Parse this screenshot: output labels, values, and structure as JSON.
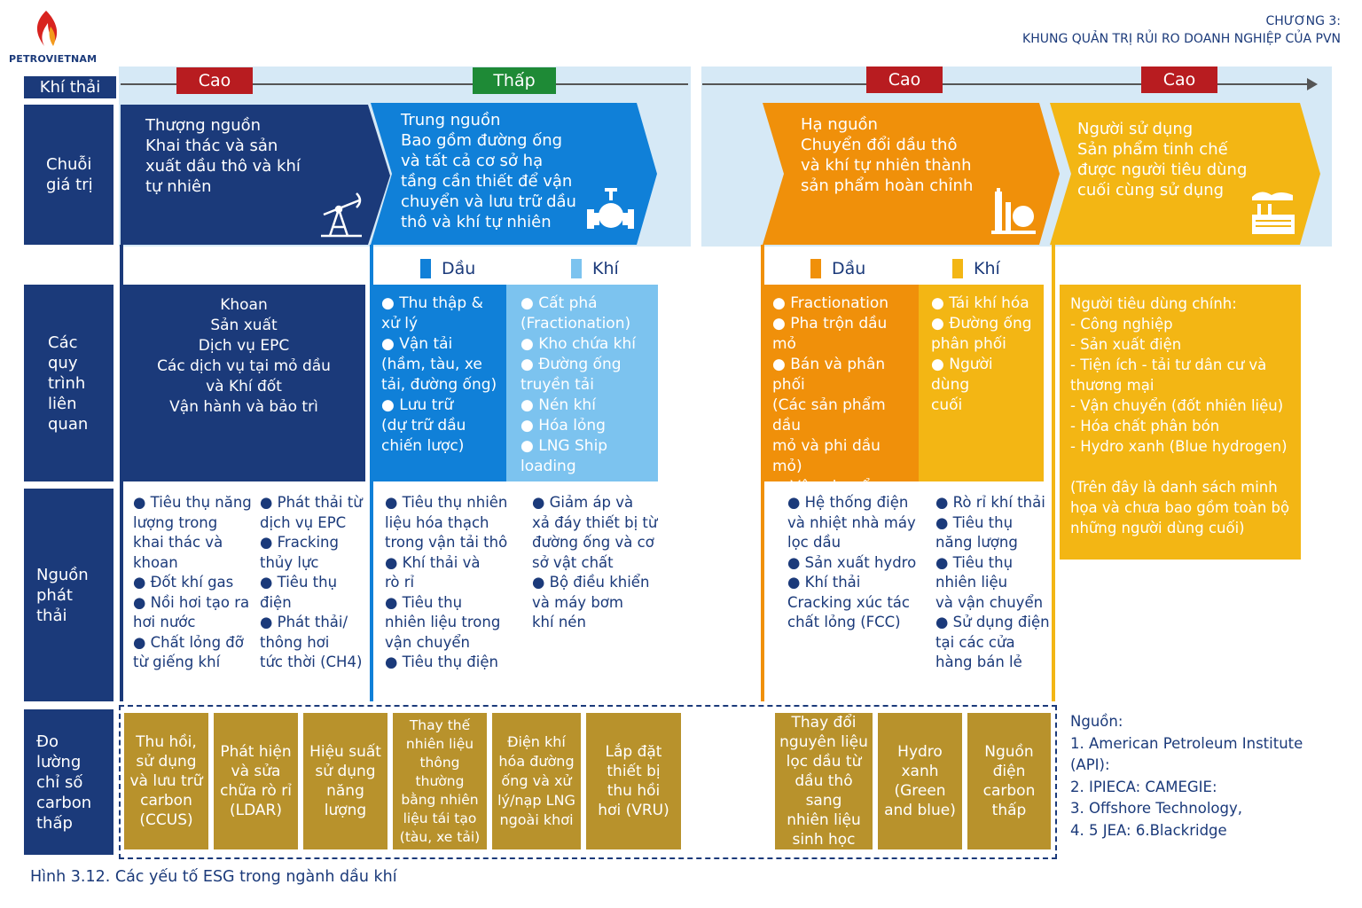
{
  "header": {
    "logo_text": "PETROVIETNAM",
    "chapter": "CHƯƠNG 3:",
    "chapter_title": "KHUNG QUẢN TRỊ RỦI RO DOANH NGHIỆP CỦA PVN"
  },
  "rows": {
    "emissions": "Khí thải",
    "value_chain": "Chuỗi\ngiá trị",
    "processes": "Các\nquy\ntrình\nliên\nquan",
    "sources": "Nguồn\nphát\nthải",
    "measures": "Đo\nlường\nchỉ số\ncarbon\nthấp"
  },
  "levels": [
    "Cao",
    "Thấp",
    "Cao",
    "Cao"
  ],
  "colors": {
    "navy": "#1b3a7a",
    "blue": "#1080d8",
    "light_blue": "#7cc3ef",
    "orange": "#f0900a",
    "yellow": "#f3b614",
    "gold": "#b8922c",
    "red": "#b81c20",
    "green": "#1e8a36"
  },
  "chain": [
    {
      "text": "Thượng nguồn\nKhai thác và sản\nxuất dầu thô và khí\ntự nhiên",
      "icon": "oil-pump-icon"
    },
    {
      "text": "Trung nguồn\nBao gồm đường ống\nvà tất cả cơ sở hạ\ntầng cần thiết để vận\nchuyển và lưu trữ dầu\nthô và khí tự nhiên",
      "icon": "pipeline-valve-icon"
    },
    {
      "text": "Hạ nguồn\nChuyển đổi dầu thô\nvà khí tự nhiên thành\nsản phẩm hoàn chỉnh",
      "icon": "refinery-icon"
    },
    {
      "text": "Người sử dụng\nSản phẩm tinh chế\nđược người tiêu dùng\ncuối cùng sử dụng",
      "icon": "factory-icon"
    }
  ],
  "legends": {
    "mid_oil": "Dầu",
    "mid_gas": "Khí",
    "down_oil": "Dầu",
    "down_gas": "Khí"
  },
  "processes": {
    "upstream": "Khoan\nSản xuất\nDịch vụ EPC\nCác dịch vụ tại mỏ dầu\nvà Khí đốt\nVận hành và bảo trì",
    "mid_oil": "● Thu thập &\nxử lý\n● Vận tải\n(hầm, tàu, xe\ntải, đường ống)\n● Lưu trữ\n(dự trữ dầu\nchiến lược)",
    "mid_gas": "● Cất phá\n(Fractionation)\n● Kho chứa khí\n● Đường ống\ntruyền tải\n● Nén khí\n● Hóa lỏng\n● LNG Ship\nloading",
    "down_oil": "● Fractionation\n● Pha trộn dầu mỏ\n● Bán và phân phối\n(Các sản phẩm dầu\nmỏ và phi dầu mỏ)\n● Vận chuyển sản\nphẩm tinh chế",
    "down_gas": "● Tái khí hóa\n● Đường ống\nphân phối\n● Người dùng\ncuối",
    "users": "Người tiêu dùng chính:\n- Công nghiệp\n- Sản xuất điện\n- Tiện ích - tải tư dân cư và\nthương mại\n- Vận chuyển (đốt nhiên liệu)\n- Hóa chất phân bón\n- Hydro xanh (Blue hydrogen)\n\n(Trên đây là danh sách minh\nhọa và chưa bao gồm toàn bộ\nnhững người dùng cuối)"
  },
  "sources": {
    "up_a": "● Tiêu thụ năng\nlượng trong\nkhai thác và\nkhoan\n● Đốt khí gas\n● Nồi hơi tạo ra\nhơi nước\n● Chất lỏng đỡ\ntừ giếng khí",
    "up_b": "● Phát thải từ\ndịch vụ EPC\n● Fracking\nthủy lực\n● Tiêu thụ điện\n● Phát thải/\nthông hơi\ntức thời (CH4)",
    "mid_a": "● Tiêu thụ nhiên\nliệu hóa thạch\ntrong vận tải thô\n● Khí thải và\nrò rỉ\n● Tiêu thụ\nnhiên liệu trong\nvận chuyển\n● Tiêu thụ điện",
    "mid_b": "● Giảm áp và\nxả đáy thiết bị từ\nđường ống và cơ\nsở vật chất\n● Bộ điều khiển\nvà máy bơm\nkhí nén",
    "down_a": "● Hệ thống điện\nvà nhiệt nhà máy\nlọc dầu\n● Sản xuất hydro\n● Khí thải\nCracking xúc tác\nchất lỏng (FCC)",
    "down_b": "● Rò rỉ khí thải\n● Tiêu thụ\nnăng lượng\n● Tiêu thụ\nnhiên liệu\nvà vận chuyển\n● Sử dụng điện\ntại các cửa\nhàng bán lẻ"
  },
  "measures": [
    "Thu hồi,\nsử dụng\nvà lưu trữ\ncarbon\n(CCUS)",
    "Phát hiện\nvà sửa\nchữa rò rỉ\n(LDAR)",
    "Hiệu suất\nsử dụng\nnăng\nlượng",
    "Thay thế\nnhiên liệu\nthông\nthường\nbằng nhiên\nliệu tái tạo\n(tàu, xe tải)",
    "Điện khí\nhóa đường\nống và xử\nlý/nạp LNG\nngoài khơi",
    "Lắp đặt\nthiết bị\nthu hồi\nhơi (VRU)",
    "Thay đổi\nnguyên liệu\nlọc dầu từ\ndầu thô sang\nnhiên liệu\nsinh học",
    "Hydro\nxanh\n(Green\nand blue)",
    "Nguồn\nđiện\ncarbon\nthấp"
  ],
  "references": "Nguồn:\n1. American Petroleum Institute\n(API):\n2. IPIECA: CAMEGIE:\n3. Offshore Technology,\n4. 5 JEA: 6.Blackridge",
  "caption": "Hình 3.12. Các yếu tố ESG trong ngành dầu khí"
}
